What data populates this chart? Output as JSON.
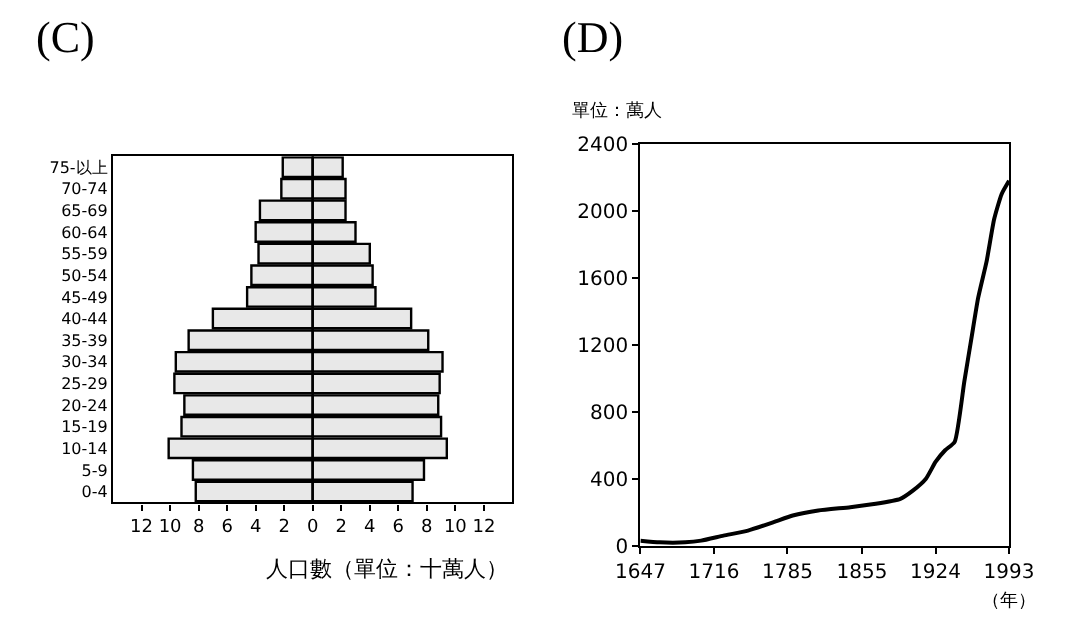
{
  "chart_data": [
    {
      "type": "bar",
      "title": "(C)",
      "orientation": "horizontal",
      "xlabel": "人口數（單位：十萬人）",
      "categories": [
        "75-以上",
        "70-74",
        "65-69",
        "60-64",
        "55-59",
        "50-54",
        "45-49",
        "40-44",
        "35-39",
        "30-34",
        "25-29",
        "20-24",
        "15-19",
        "10-14",
        "5-9",
        "0-4"
      ],
      "series": [
        {
          "color": "#e8e8e8",
          "values": [
            -2.1,
            -2.2,
            -3.7,
            -4.0,
            -3.8,
            -4.3,
            -4.6,
            -7.0,
            -8.7,
            -9.6,
            -9.7,
            -9.0,
            -9.2,
            -10.1,
            -8.4,
            -8.2
          ]
        },
        {
          "color": "#e8e8e8",
          "values": [
            2.1,
            2.3,
            2.3,
            3.0,
            4.0,
            4.2,
            4.4,
            6.9,
            8.1,
            9.1,
            8.9,
            8.8,
            9.0,
            9.4,
            7.8,
            7.0
          ]
        }
      ],
      "xlim": [
        -14,
        14
      ],
      "xticks": [
        {
          "value": -12,
          "label": "12"
        },
        {
          "value": -10,
          "label": "10"
        },
        {
          "value": -8,
          "label": "8"
        },
        {
          "value": -6,
          "label": "6"
        },
        {
          "value": -4,
          "label": "4"
        },
        {
          "value": -2,
          "label": "2"
        },
        0,
        2,
        4,
        6,
        8,
        10,
        12
      ],
      "stacked": true,
      "ref_lines": [
        {
          "axis": "x",
          "value": 0,
          "color": "#000000"
        }
      ]
    },
    {
      "type": "line",
      "title": "(D)",
      "ylabel": "單位：萬人",
      "xlabel": "（年）",
      "x": [
        1647,
        1665,
        1689,
        1704,
        1725,
        1748,
        1772,
        1790,
        1814,
        1844,
        1868,
        1891,
        1903,
        1915,
        1924,
        1933,
        1942,
        1951,
        1958,
        1964,
        1972,
        1979,
        1986,
        1993
      ],
      "values": [
        30,
        20,
        20,
        30,
        60,
        90,
        140,
        180,
        210,
        230,
        250,
        280,
        330,
        400,
        500,
        570,
        620,
        980,
        1250,
        1480,
        1700,
        1950,
        2100,
        2180
      ],
      "color": "#000000",
      "xlim": [
        1647,
        1993
      ],
      "xticks": [
        1647,
        1716,
        1785,
        1855,
        1924,
        1993
      ],
      "ylim": [
        0,
        2400
      ],
      "yticks": [
        0,
        400,
        800,
        1200,
        1600,
        2000,
        2400
      ],
      "marker": "none",
      "line_style": "solid"
    }
  ]
}
